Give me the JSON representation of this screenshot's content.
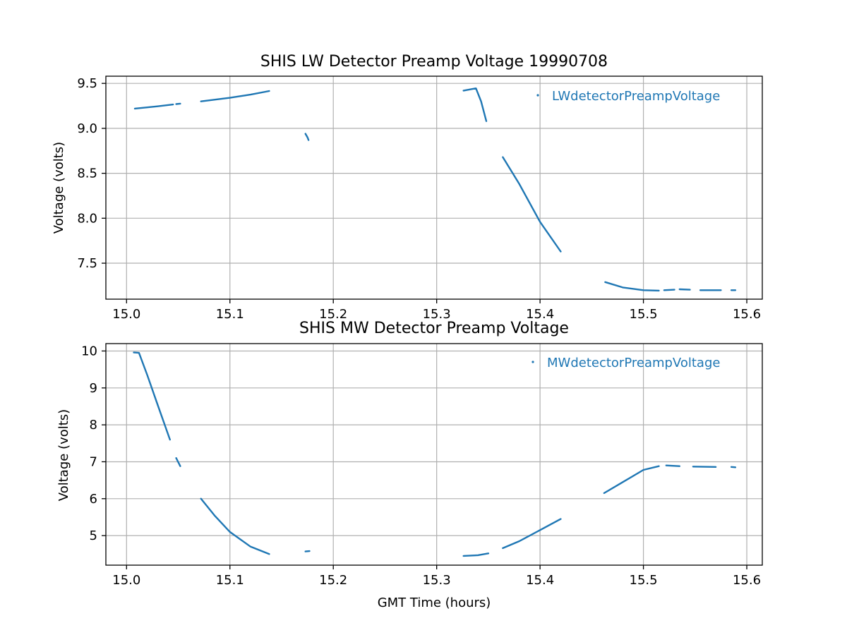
{
  "chart_data": [
    {
      "type": "scatter",
      "title": "SHIS LW Detector Preamp Voltage 19990708",
      "xlabel": "",
      "ylabel": "Voltage (volts)",
      "xlim": [
        14.98,
        15.615
      ],
      "ylim": [
        7.1,
        9.58
      ],
      "xticks": [
        15.0,
        15.1,
        15.2,
        15.3,
        15.4,
        15.5,
        15.6
      ],
      "xtick_labels": [
        "15.0",
        "15.1",
        "15.2",
        "15.3",
        "15.4",
        "15.5",
        "15.6"
      ],
      "yticks": [
        7.5,
        8.0,
        8.5,
        9.0,
        9.5
      ],
      "ytick_labels": [
        "7.5",
        "8.0",
        "8.5",
        "9.0",
        "9.5"
      ],
      "grid": true,
      "legend_position": "top-right",
      "series": [
        {
          "name": "LWdetectorPreampVoltage",
          "color": "#1f77b4",
          "segments": [
            [
              [
                15.008,
                9.22
              ],
              [
                15.03,
                9.245
              ],
              [
                15.045,
                9.265
              ]
            ],
            [
              [
                15.048,
                9.27
              ],
              [
                15.052,
                9.275
              ]
            ],
            [
              [
                15.072,
                9.3
              ],
              [
                15.1,
                9.34
              ],
              [
                15.12,
                9.375
              ],
              [
                15.138,
                9.415
              ]
            ],
            [
              [
                15.173,
                8.94
              ],
              [
                15.175,
                8.9
              ],
              [
                15.176,
                8.87
              ]
            ],
            [
              [
                15.326,
                9.42
              ],
              [
                15.338,
                9.445
              ],
              [
                15.343,
                9.3
              ],
              [
                15.348,
                9.08
              ]
            ],
            [
              [
                15.364,
                8.68
              ],
              [
                15.38,
                8.38
              ],
              [
                15.4,
                7.96
              ],
              [
                15.42,
                7.63
              ]
            ],
            [
              [
                15.463,
                7.29
              ],
              [
                15.48,
                7.23
              ],
              [
                15.5,
                7.2
              ],
              [
                15.515,
                7.195
              ]
            ],
            [
              [
                15.52,
                7.2
              ],
              [
                15.53,
                7.205
              ]
            ],
            [
              [
                15.535,
                7.21
              ],
              [
                15.545,
                7.205
              ]
            ],
            [
              [
                15.555,
                7.2
              ],
              [
                15.575,
                7.2
              ]
            ],
            [
              [
                15.585,
                7.2
              ],
              [
                15.589,
                7.2
              ]
            ]
          ]
        }
      ]
    },
    {
      "type": "scatter",
      "title": "SHIS MW Detector Preamp Voltage",
      "xlabel": "GMT Time (hours)",
      "ylabel": "Voltage (volts)",
      "xlim": [
        14.98,
        15.615
      ],
      "ylim": [
        4.2,
        10.2
      ],
      "xticks": [
        15.0,
        15.1,
        15.2,
        15.3,
        15.4,
        15.5,
        15.6
      ],
      "xtick_labels": [
        "15.0",
        "15.1",
        "15.2",
        "15.3",
        "15.4",
        "15.5",
        "15.6"
      ],
      "yticks": [
        5,
        6,
        7,
        8,
        9,
        10
      ],
      "ytick_labels": [
        "5",
        "6",
        "7",
        "8",
        "9",
        "10"
      ],
      "grid": true,
      "legend_position": "top-right",
      "series": [
        {
          "name": "MWdetectorPreampVoltage",
          "color": "#1f77b4",
          "segments": [
            [
              [
                15.007,
                9.96
              ],
              [
                15.012,
                9.95
              ],
              [
                15.02,
                9.35
              ],
              [
                15.03,
                8.55
              ],
              [
                15.042,
                7.6
              ]
            ],
            [
              [
                15.048,
                7.1
              ],
              [
                15.052,
                6.88
              ]
            ],
            [
              [
                15.072,
                6.0
              ],
              [
                15.085,
                5.55
              ],
              [
                15.1,
                5.1
              ],
              [
                15.12,
                4.7
              ],
              [
                15.138,
                4.5
              ]
            ],
            [
              [
                15.173,
                4.57
              ],
              [
                15.177,
                4.58
              ]
            ],
            [
              [
                15.326,
                4.45
              ],
              [
                15.34,
                4.47
              ],
              [
                15.35,
                4.52
              ]
            ],
            [
              [
                15.364,
                4.66
              ],
              [
                15.38,
                4.85
              ],
              [
                15.4,
                5.15
              ],
              [
                15.42,
                5.45
              ]
            ],
            [
              [
                15.462,
                6.15
              ],
              [
                15.48,
                6.45
              ],
              [
                15.5,
                6.78
              ],
              [
                15.515,
                6.88
              ]
            ],
            [
              [
                15.522,
                6.9
              ],
              [
                15.535,
                6.88
              ]
            ],
            [
              [
                15.548,
                6.87
              ],
              [
                15.57,
                6.86
              ]
            ],
            [
              [
                15.585,
                6.86
              ],
              [
                15.589,
                6.85
              ]
            ]
          ]
        }
      ]
    }
  ]
}
